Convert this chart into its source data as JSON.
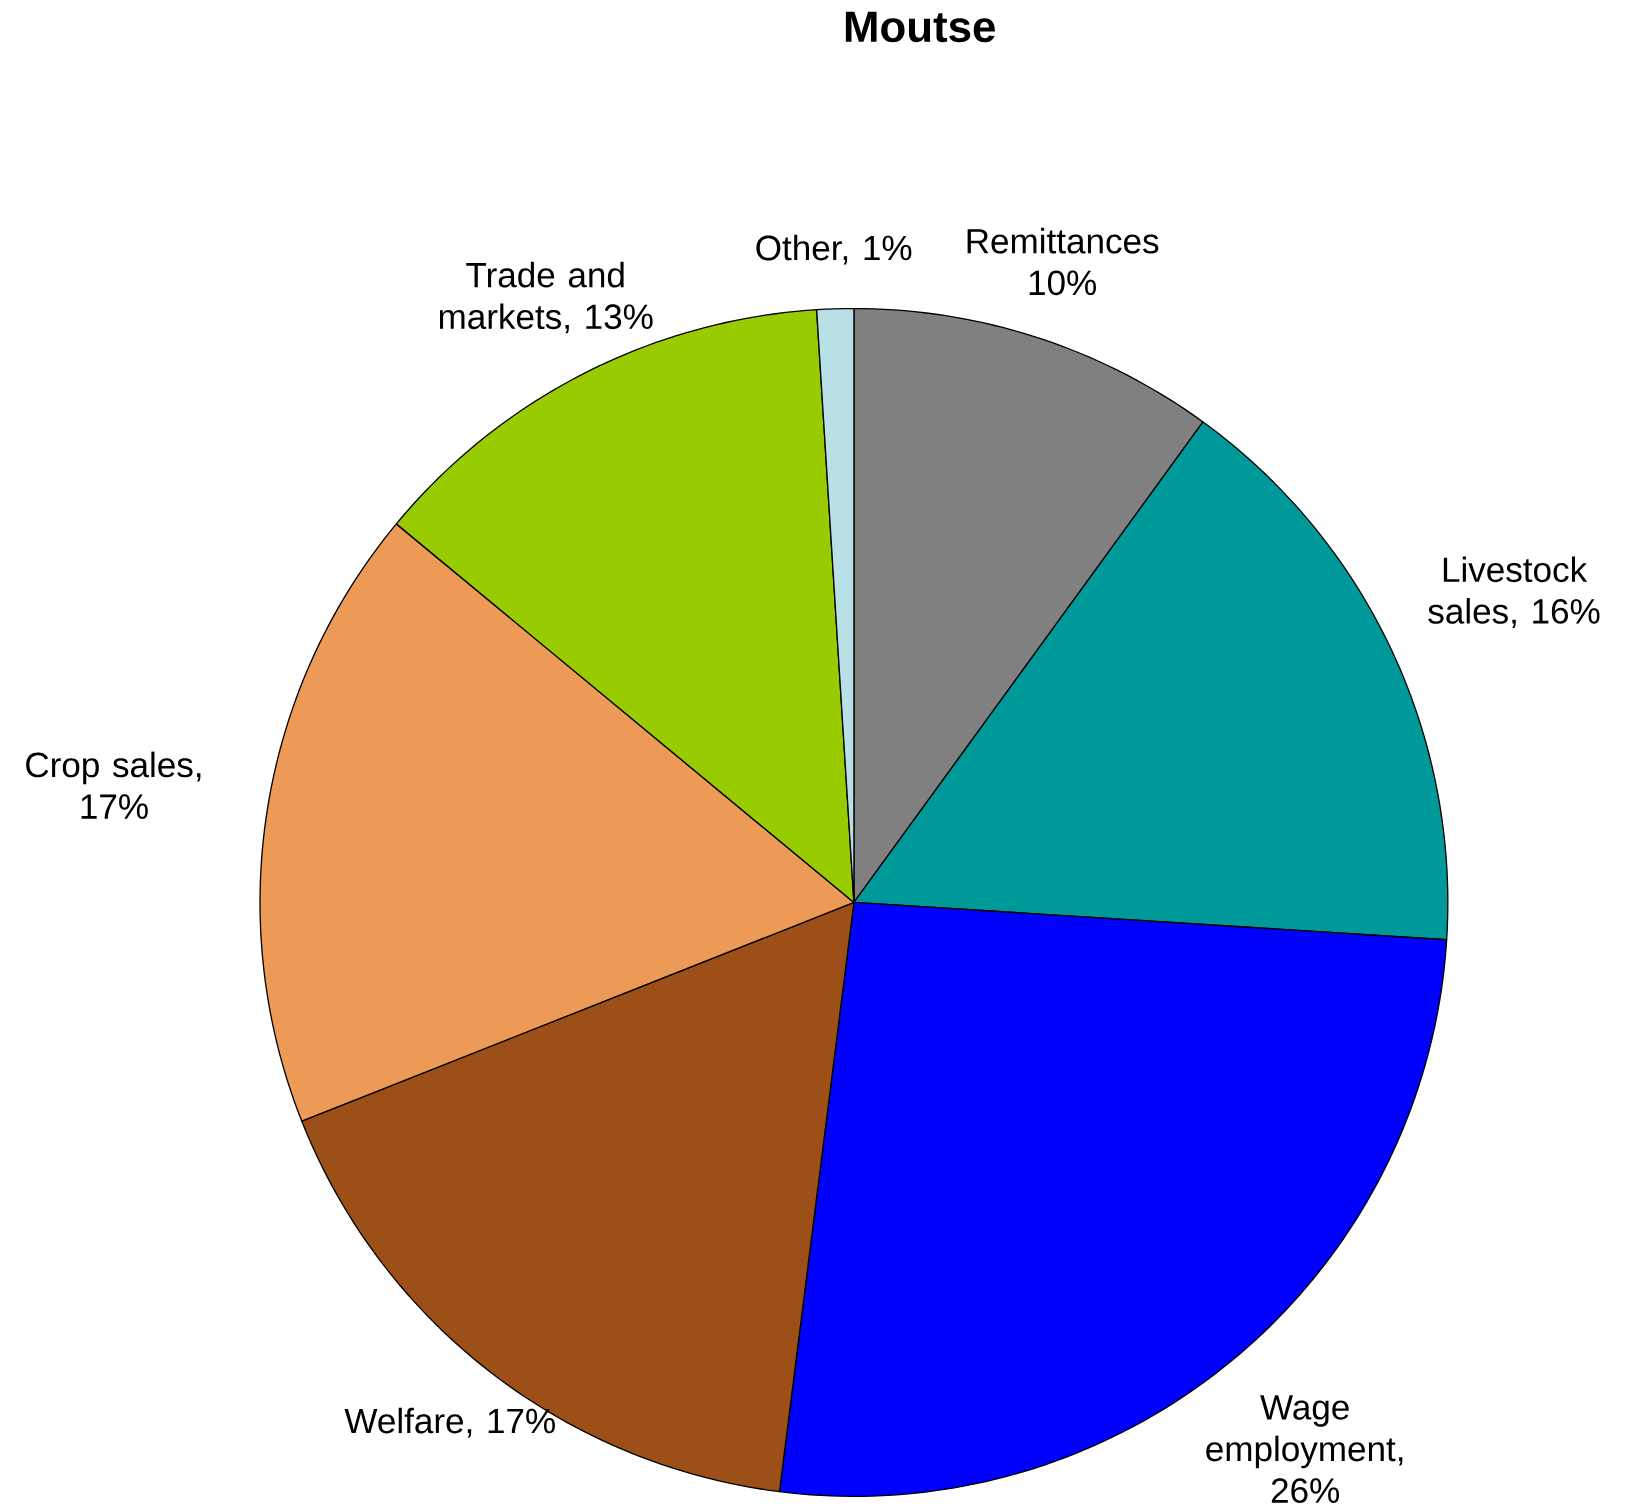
{
  "chart_data": {
    "type": "pie",
    "title": "Moutse",
    "categories": [
      "Remittances 10%",
      "Livestock sales, 16%",
      "Wage employment, 26%",
      "Welfare, 17%",
      "Crop sales, 17%",
      "Trade and markets, 13%",
      "Other, 1%"
    ],
    "values": [
      10,
      16,
      26,
      17,
      17,
      13,
      1
    ],
    "colors": [
      "#808080",
      "#009999",
      "#0000ff",
      "#9c4f16",
      "#ed9a57",
      "#99cc00",
      "#b7e1e6"
    ],
    "legend": false
  }
}
